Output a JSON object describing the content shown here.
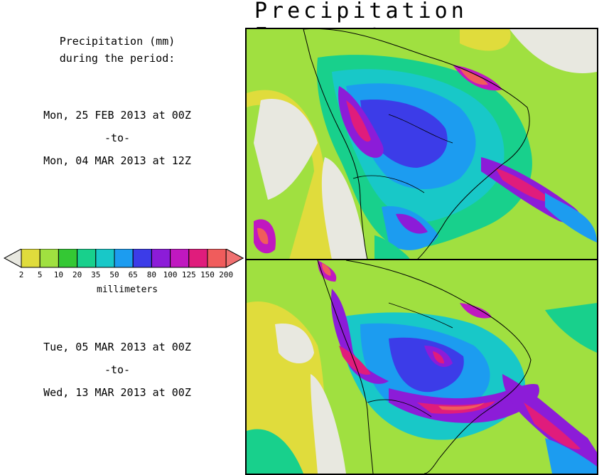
{
  "title": "Precipitation Forecast",
  "legend": {
    "heading_line1": "Precipitation (mm)",
    "heading_line2": "during the period:",
    "units": "millimeters",
    "levels": [
      "2",
      "5",
      "10",
      "20",
      "35",
      "50",
      "65",
      "80",
      "100",
      "125",
      "150",
      "200"
    ],
    "colors": [
      "#e8e8e0",
      "#e0dc3c",
      "#a0e040",
      "#34c834",
      "#18d08c",
      "#18c8c8",
      "#1c9cf0",
      "#3c3ce8",
      "#8c1cd8",
      "#c018c0",
      "#e01c7c",
      "#f05c5c",
      "#f07070"
    ]
  },
  "period_top": {
    "start": "Mon, 25 FEB 2013 at 00Z",
    "sep": "-to-",
    "end": "Mon, 04 MAR 2013 at 12Z"
  },
  "period_bottom": {
    "start": "Tue, 05 MAR 2013 at 00Z",
    "sep": "-to-",
    "end": "Wed, 13 MAR 2013 at 00Z"
  }
}
